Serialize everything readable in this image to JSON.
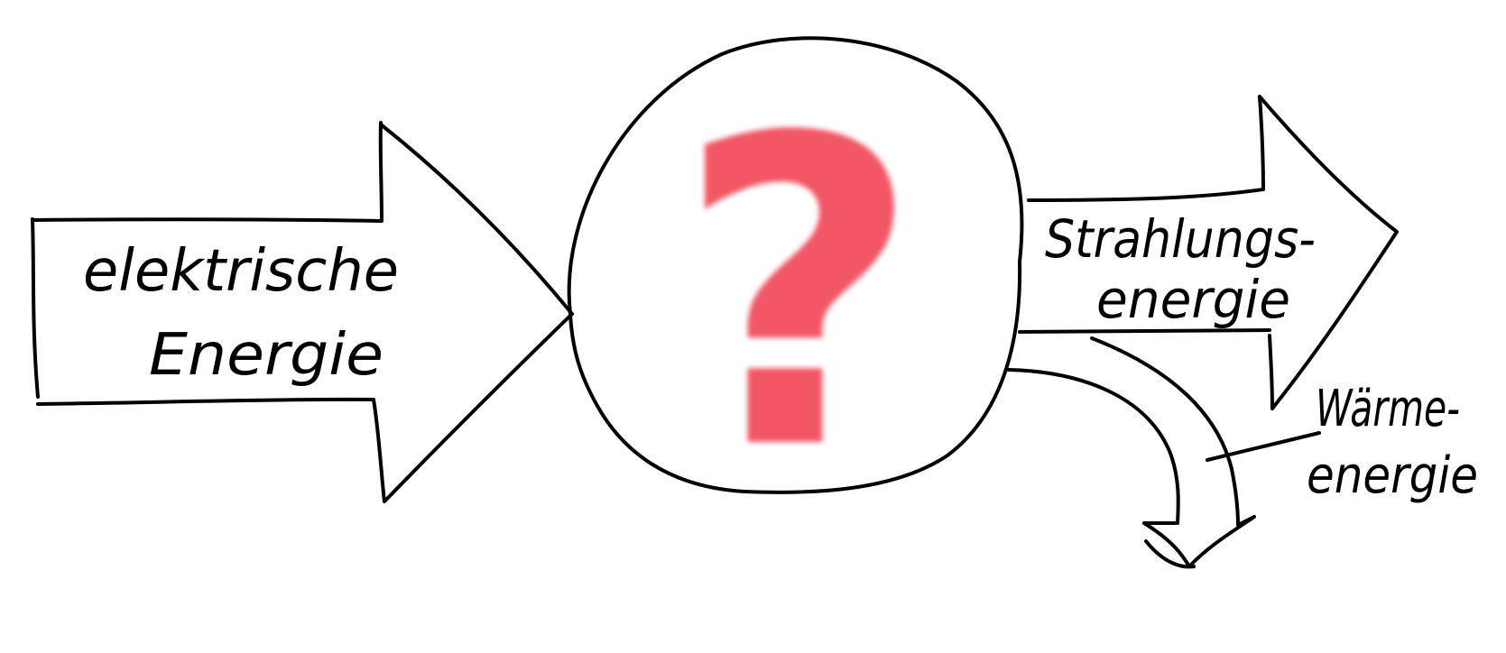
{
  "input": {
    "label_line1": "elektrische",
    "label_line2": "Energie"
  },
  "converter": {
    "symbol": "?",
    "symbol_color": "#f03a4a"
  },
  "output_radiation": {
    "label_line1": "Strahlungs-",
    "label_line2": "energie"
  },
  "output_heat": {
    "label_line1": "Wärme-",
    "label_line2": "energie"
  },
  "ink_color": "#000000"
}
